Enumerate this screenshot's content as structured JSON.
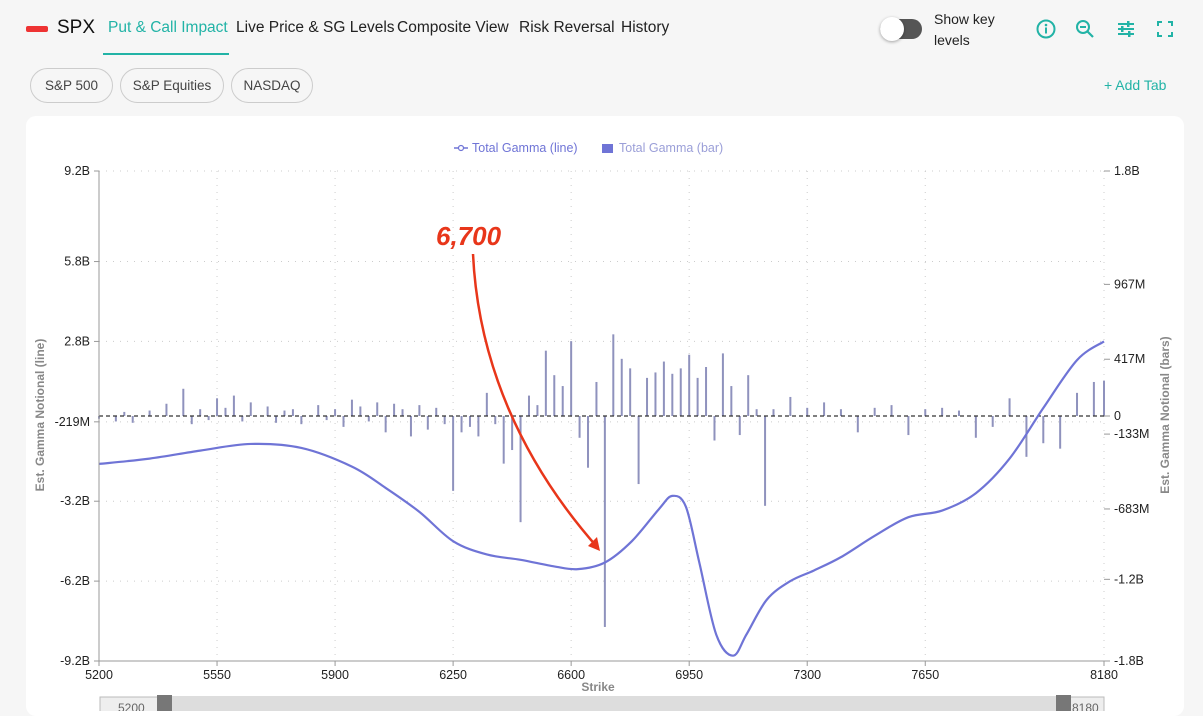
{
  "app": {
    "brand": "SPX",
    "nav_tabs": [
      {
        "label": "Put & Call Impact",
        "active": true
      },
      {
        "label": "Live Price & SG Levels",
        "active": false
      },
      {
        "label": "Composite View",
        "active": false
      },
      {
        "label": "Risk Reversal",
        "active": false
      },
      {
        "label": "History",
        "active": false
      }
    ],
    "toggle": {
      "label": "Show key levels",
      "on": false
    },
    "tools": [
      "info-icon",
      "zoom-out-icon",
      "sliders-icon",
      "fullscreen-icon"
    ],
    "pills": [
      "S&P 500",
      "S&P Equities",
      "NASDAQ"
    ],
    "add_tab": "+ Add Tab",
    "accent_color": "#22b3a6"
  },
  "chart_data": {
    "type": "line",
    "legend": [
      {
        "name": "Total Gamma (line)",
        "marker": "line",
        "color": "#6f74d6"
      },
      {
        "name": "Total Gamma (bar)",
        "marker": "bar",
        "color": "#8f92bd"
      }
    ],
    "legend_position": "top-center",
    "xlabel": "Strike",
    "ylabel_left": "Est. Gamma Notional (line)",
    "ylabel_right": "Est. Gamma Notional (bars)",
    "x_ticks": [
      "5200",
      "5550",
      "5900",
      "6250",
      "6600",
      "6950",
      "7300",
      "7650",
      "8180"
    ],
    "x_tick_values": [
      5200,
      5550,
      5900,
      6250,
      6600,
      6950,
      7300,
      7650,
      8180
    ],
    "x_range": [
      5200,
      8180
    ],
    "y_left_ticks": [
      "9.2B",
      "5.8B",
      "2.8B",
      "-219M",
      "-3.2B",
      "-6.2B",
      "-9.2B"
    ],
    "y_left_tick_values": [
      9.2,
      5.8,
      2.8,
      -0.219,
      -3.2,
      -6.2,
      -9.2
    ],
    "y_left_range": [
      -9.2,
      9.2
    ],
    "y_right_ticks": [
      "1.8B",
      "967M",
      "417M",
      "0",
      "-133M",
      "-683M",
      "-1.2B",
      "-1.8B"
    ],
    "y_right_tick_values": [
      1.8,
      0.967,
      0.417,
      0,
      -0.133,
      -0.683,
      -1.2,
      -1.8
    ],
    "y_right_range": [
      -1.8,
      1.8
    ],
    "grid": true,
    "line_series": {
      "name": "Total Gamma (line)",
      "color": "#6f74d6",
      "x": [
        5200,
        5350,
        5500,
        5650,
        5800,
        5950,
        6050,
        6150,
        6250,
        6350,
        6450,
        6550,
        6620,
        6700,
        6780,
        6860,
        6900,
        6940,
        6980,
        7030,
        7080,
        7120,
        7180,
        7250,
        7320,
        7400,
        7500,
        7600,
        7700,
        7800,
        7900,
        8000,
        8100,
        8180
      ],
      "y": [
        -1.8,
        -1.6,
        -1.3,
        -1.05,
        -1.2,
        -1.9,
        -2.7,
        -3.6,
        -4.7,
        -5.2,
        -5.4,
        -5.65,
        -5.75,
        -5.5,
        -4.7,
        -3.5,
        -3.0,
        -3.4,
        -5.5,
        -8.2,
        -9.0,
        -8.2,
        -6.9,
        -6.2,
        -5.8,
        -5.3,
        -4.5,
        -3.8,
        -3.55,
        -2.9,
        -1.6,
        0.3,
        2.1,
        2.8
      ]
    },
    "bar_series": {
      "name": "Total Gamma (bar)",
      "color": "#8f92bd",
      "x": [
        5200,
        5250,
        5275,
        5300,
        5350,
        5400,
        5450,
        5475,
        5500,
        5525,
        5550,
        5575,
        5600,
        5625,
        5650,
        5700,
        5725,
        5750,
        5775,
        5800,
        5850,
        5875,
        5900,
        5925,
        5950,
        5975,
        6000,
        6025,
        6050,
        6075,
        6100,
        6125,
        6150,
        6175,
        6200,
        6225,
        6250,
        6275,
        6300,
        6325,
        6350,
        6375,
        6400,
        6425,
        6450,
        6475,
        6500,
        6525,
        6550,
        6575,
        6600,
        6625,
        6650,
        6675,
        6700,
        6725,
        6750,
        6775,
        6800,
        6825,
        6850,
        6875,
        6900,
        6925,
        6950,
        6975,
        7000,
        7025,
        7050,
        7075,
        7100,
        7125,
        7150,
        7175,
        7200,
        7250,
        7300,
        7350,
        7400,
        7450,
        7500,
        7550,
        7600,
        7650,
        7700,
        7750,
        7800,
        7850,
        7900,
        7950,
        8000,
        8050,
        8100,
        8150,
        8180
      ],
      "y": [
        -0.02,
        -0.04,
        0.03,
        -0.05,
        0.04,
        0.09,
        0.2,
        -0.06,
        0.05,
        -0.03,
        0.13,
        0.06,
        0.15,
        -0.04,
        0.1,
        0.07,
        -0.05,
        0.04,
        0.05,
        -0.06,
        0.08,
        -0.03,
        0.05,
        -0.08,
        0.12,
        0.07,
        -0.04,
        0.1,
        -0.12,
        0.09,
        0.05,
        -0.15,
        0.08,
        -0.1,
        0.06,
        -0.06,
        -0.55,
        -0.12,
        -0.08,
        -0.15,
        0.17,
        -0.06,
        -0.35,
        -0.25,
        -0.78,
        0.15,
        0.08,
        0.48,
        0.3,
        0.22,
        0.55,
        -0.16,
        -0.38,
        0.25,
        -1.55,
        0.6,
        0.42,
        0.35,
        -0.5,
        0.28,
        0.32,
        0.4,
        0.31,
        0.35,
        0.45,
        0.28,
        0.36,
        -0.18,
        0.46,
        0.22,
        -0.14,
        0.3,
        0.05,
        -0.66,
        0.05,
        0.14,
        0.06,
        0.1,
        0.05,
        -0.12,
        0.06,
        0.08,
        -0.14,
        0.05,
        0.06,
        0.04,
        -0.16,
        -0.08,
        0.13,
        -0.3,
        -0.2,
        -0.24,
        0.17,
        0.25,
        0.26
      ]
    },
    "annotation": {
      "text": "6,700",
      "color": "#e8361a",
      "target_x": 6700
    },
    "range_slider": {
      "start_label": "5200",
      "end_label": "8180"
    }
  }
}
